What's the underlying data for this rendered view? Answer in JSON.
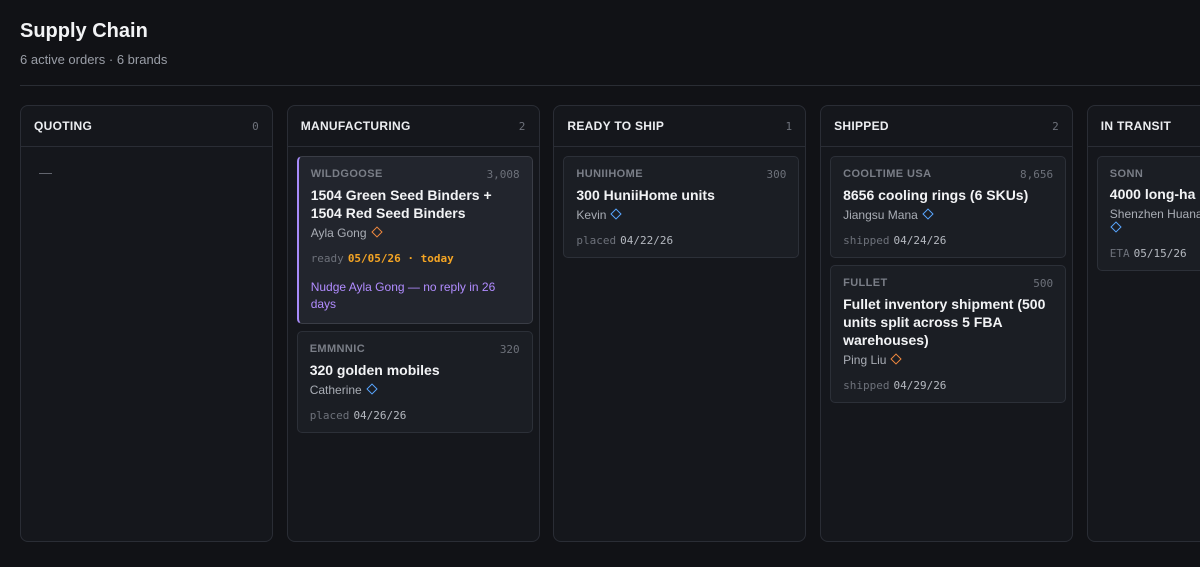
{
  "header": {
    "title": "Supply Chain",
    "subtitle": "6 active orders · 6 brands"
  },
  "columns": [
    {
      "name": "QUOTING",
      "count": 0,
      "placeholder": "—",
      "cards": []
    },
    {
      "name": "MANUFACTURING",
      "count": 2,
      "cards": [
        {
          "brand": "WILDGOOSE",
          "qty": "3,008",
          "title": "1504 Green Seed Binders + 1504 Red Seed Binders",
          "contact": "Ayla Gong",
          "icon_color": "#f0883e",
          "date_label": "ready",
          "date": "05/05/26 · today",
          "date_color": "#f5a524",
          "nudge": "Nudge Ayla Gong — no reply in 26 days",
          "highlight": "#a78bfa"
        },
        {
          "brand": "EMMNNIC",
          "qty": "320",
          "title": "320 golden mobiles",
          "contact": "Catherine",
          "icon_color": "#58a6ff",
          "date_label": "placed",
          "date": "04/26/26"
        }
      ]
    },
    {
      "name": "READY TO SHIP",
      "count": 1,
      "cards": [
        {
          "brand": "HUNIIHOME",
          "qty": "300",
          "title": "300 HuniiHome units",
          "contact": "Kevin",
          "icon_color": "#58a6ff",
          "date_label": "placed",
          "date": "04/22/26"
        }
      ]
    },
    {
      "name": "SHIPPED",
      "count": 2,
      "cards": [
        {
          "brand": "COOLTIME USA",
          "qty": "8,656",
          "title": "8656 cooling rings (6 SKUs)",
          "contact": "Jiangsu Mana",
          "icon_color": "#58a6ff",
          "date_label": "shipped",
          "date": "04/24/26"
        },
        {
          "brand": "FULLET",
          "qty": "500",
          "title": "Fullet inventory shipment (500 units split across 5 FBA warehouses)",
          "contact": "Ping Liu",
          "icon_color": "#f0883e",
          "date_label": "shipped",
          "date": "04/29/26"
        }
      ]
    },
    {
      "name": "IN TRANSIT",
      "cards": [
        {
          "brand": "SONN",
          "title": "4000 long-ha",
          "contact": "Shenzhen Huana",
          "icon_color": "#58a6ff",
          "icon_break": true,
          "date_label": "ETA",
          "date": "05/15/26"
        }
      ]
    }
  ]
}
